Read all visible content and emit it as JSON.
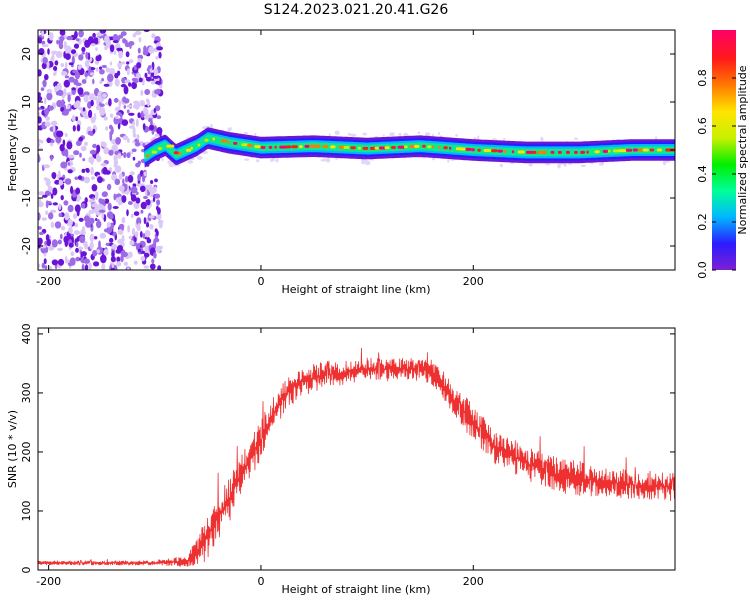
{
  "title": "S124.2023.021.20.41.G26",
  "chart_data": [
    {
      "type": "heatmap",
      "xlabel": "Height of straight line (km)",
      "ylabel": "Frequency (Hz)",
      "xlim": [
        -210,
        390
      ],
      "ylim": [
        -25,
        25
      ],
      "x_ticks": [
        -200,
        0,
        200
      ],
      "y_ticks": [
        -20,
        -10,
        0,
        10,
        20
      ],
      "colorbar": {
        "label": "Normalized spectral amplitude",
        "range": [
          0,
          1
        ],
        "ticks": [
          0.0,
          0.2,
          0.4,
          0.6,
          0.8
        ],
        "colormap": [
          "#7e1fd4",
          "#2b1cff",
          "#00b7ff",
          "#00ff99",
          "#00ee00",
          "#c9f000",
          "#ffe400",
          "#ff7a00",
          "#ff1a1a",
          "#ff0068"
        ]
      },
      "noise_region": {
        "x_range": [
          -210,
          -100
        ],
        "level": "low"
      },
      "signal_track": [
        {
          "x": -110,
          "y": -1.5
        },
        {
          "x": -100,
          "y": 0
        },
        {
          "x": -90,
          "y": 1.0
        },
        {
          "x": -80,
          "y": -1.0
        },
        {
          "x": -60,
          "y": 1.0
        },
        {
          "x": -50,
          "y": 2.5
        },
        {
          "x": -30,
          "y": 1.5
        },
        {
          "x": 0,
          "y": 0.5
        },
        {
          "x": 50,
          "y": 0.8
        },
        {
          "x": 100,
          "y": 0.3
        },
        {
          "x": 150,
          "y": 0.8
        },
        {
          "x": 200,
          "y": 0
        },
        {
          "x": 250,
          "y": -0.5
        },
        {
          "x": 300,
          "y": -0.5
        },
        {
          "x": 350,
          "y": 0
        },
        {
          "x": 390,
          "y": 0
        }
      ]
    },
    {
      "type": "line",
      "xlabel": "Height of straight line (km)",
      "ylabel": "SNR (10 * v/v)",
      "xlim": [
        -210,
        390
      ],
      "ylim": [
        0,
        410
      ],
      "x_ticks": [
        -200,
        0,
        200
      ],
      "y_ticks": [
        0,
        100,
        200,
        300,
        400
      ],
      "series": [
        {
          "color": "#ee3030",
          "x": [
            -210,
            -150,
            -100,
            -70,
            -60,
            -50,
            -40,
            -30,
            -20,
            -10,
            0,
            10,
            20,
            30,
            40,
            60,
            80,
            100,
            120,
            140,
            160,
            170,
            180,
            200,
            220,
            250,
            280,
            300,
            320,
            350,
            390
          ],
          "mean": [
            12,
            12,
            12,
            15,
            30,
            60,
            90,
            120,
            160,
            190,
            220,
            260,
            290,
            310,
            320,
            330,
            335,
            340,
            340,
            340,
            338,
            320,
            290,
            250,
            210,
            180,
            160,
            155,
            150,
            145,
            140
          ],
          "noise": [
            4,
            4,
            4,
            10,
            30,
            40,
            40,
            40,
            40,
            35,
            35,
            30,
            30,
            30,
            25,
            25,
            20,
            20,
            20,
            20,
            22,
            25,
            30,
            30,
            30,
            30,
            30,
            30,
            25,
            25,
            25
          ]
        }
      ]
    }
  ]
}
